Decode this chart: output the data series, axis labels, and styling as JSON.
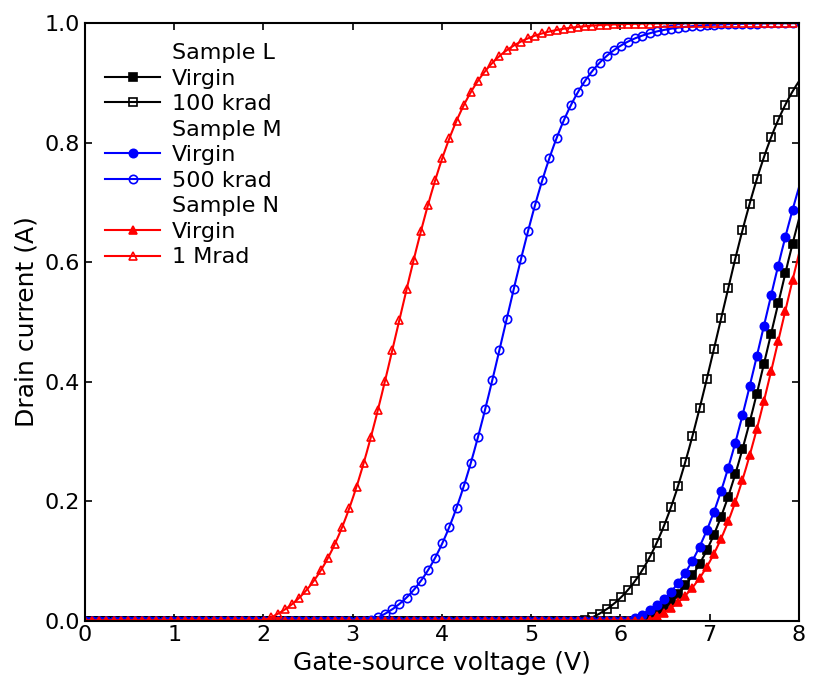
{
  "title": "",
  "xlabel": "Gate-source voltage (V)",
  "ylabel": "Drain current (A)",
  "xlim": [
    0,
    8
  ],
  "ylim": [
    0,
    1.0
  ],
  "xticks": [
    0,
    1,
    2,
    3,
    4,
    5,
    6,
    7,
    8
  ],
  "yticks": [
    0.0,
    0.2,
    0.4,
    0.6,
    0.8,
    1.0
  ],
  "curves": [
    {
      "label": "Sample L Virgin",
      "color": "black",
      "marker": "s",
      "fillstyle": "full",
      "vth": 6.2,
      "k": 1.8,
      "n": 3.5,
      "group": "L"
    },
    {
      "label": "100 krad",
      "color": "black",
      "marker": "s",
      "fillstyle": "none",
      "vth": 5.6,
      "k": 1.8,
      "n": 3.5,
      "group": "L"
    },
    {
      "label": "Sample M Virgin",
      "color": "blue",
      "marker": "o",
      "fillstyle": "full",
      "vth": 6.1,
      "k": 1.8,
      "n": 3.5,
      "group": "M"
    },
    {
      "label": "500 krad",
      "color": "blue",
      "marker": "o",
      "fillstyle": "none",
      "vth": 3.2,
      "k": 1.8,
      "n": 3.5,
      "group": "M"
    },
    {
      "label": "Sample N Virgin",
      "color": "red",
      "marker": "^",
      "fillstyle": "full",
      "vth": 6.3,
      "k": 1.8,
      "n": 3.5,
      "group": "N"
    },
    {
      "label": "1 Mrad",
      "color": "red",
      "marker": "^",
      "fillstyle": "none",
      "vth": 2.0,
      "k": 1.8,
      "n": 3.5,
      "group": "N"
    }
  ],
  "legend_labels": {
    "sample_L": "Sample L",
    "L_virgin": "Virgin",
    "L_100krad": "100 krad",
    "sample_M": "Sample M",
    "M_virgin": "Virgin",
    "M_500krad": "500 krad",
    "sample_N": "Sample N",
    "N_virgin": "Virgin",
    "N_1Mrad": "1 Mrad"
  },
  "font_size": 16,
  "tick_font_size": 16,
  "label_font_size": 18,
  "marker_size": 6,
  "marker_every": 10,
  "line_width": 1.5,
  "n_points": 1000
}
